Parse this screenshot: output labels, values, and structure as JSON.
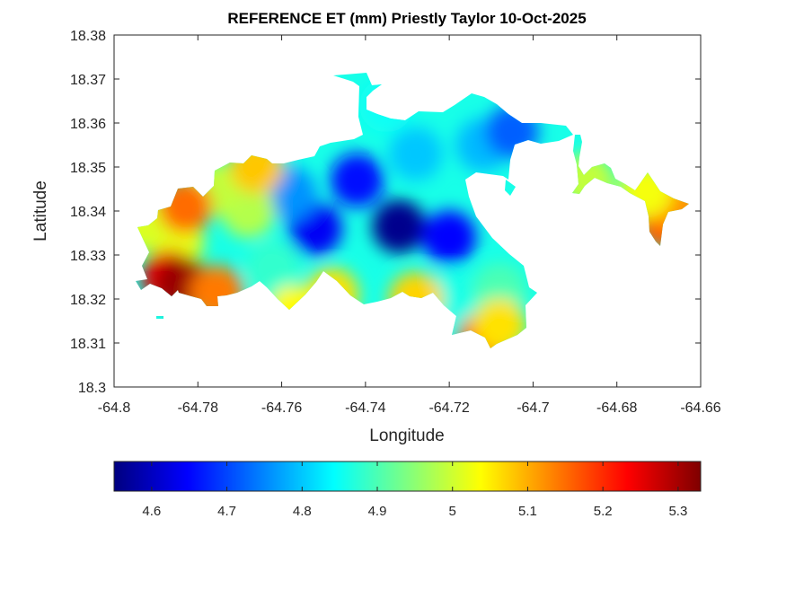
{
  "chart_data": {
    "type": "heatmap",
    "title": "REFERENCE ET (mm) Priestly Taylor 10-Oct-2025",
    "xlabel": "Longitude",
    "ylabel": "Latitude",
    "xlim": [
      -64.8,
      -64.66
    ],
    "ylim": [
      18.3,
      18.38
    ],
    "xticks": [
      -64.8,
      -64.78,
      -64.76,
      -64.74,
      -64.72,
      -64.7,
      -64.68,
      -64.66
    ],
    "xtick_labels": [
      "-64.8",
      "-64.78",
      "-64.76",
      "-64.74",
      "-64.72",
      "-64.7",
      "-64.68",
      "-64.66"
    ],
    "yticks": [
      18.3,
      18.31,
      18.32,
      18.33,
      18.34,
      18.35,
      18.36,
      18.37,
      18.38
    ],
    "ytick_labels": [
      "18.3",
      "18.31",
      "18.32",
      "18.33",
      "18.34",
      "18.35",
      "18.36",
      "18.37",
      "18.38"
    ],
    "colormap": "jet",
    "clim": [
      4.55,
      5.33
    ],
    "colorbar_ticks": [
      4.6,
      4.7,
      4.8,
      4.9,
      5,
      5.1,
      5.2,
      5.3
    ],
    "colorbar_tick_labels": [
      "4.6",
      "4.7",
      "4.8",
      "4.9",
      "5",
      "5.1",
      "5.2",
      "5.3"
    ],
    "colorbar_location": "southoutside",
    "grid": false,
    "regions": [
      {
        "lon": -64.732,
        "lat": 18.3365,
        "value": 4.56
      },
      {
        "lon": -64.752,
        "lat": 18.336,
        "value": 4.64
      },
      {
        "lon": -64.742,
        "lat": 18.347,
        "value": 4.66
      },
      {
        "lon": -64.72,
        "lat": 18.334,
        "value": 4.65
      },
      {
        "lon": -64.758,
        "lat": 18.344,
        "value": 4.76
      },
      {
        "lon": -64.728,
        "lat": 18.353,
        "value": 4.8
      },
      {
        "lon": -64.712,
        "lat": 18.355,
        "value": 4.79
      },
      {
        "lon": -64.705,
        "lat": 18.358,
        "value": 4.72
      },
      {
        "lon": -64.735,
        "lat": 18.364,
        "value": 4.85
      },
      {
        "lon": -64.72,
        "lat": 18.32,
        "value": 4.86
      },
      {
        "lon": -64.708,
        "lat": 18.322,
        "value": 4.9
      },
      {
        "lon": -64.762,
        "lat": 18.327,
        "value": 4.88
      },
      {
        "lon": -64.768,
        "lat": 18.34,
        "value": 4.98
      },
      {
        "lon": -64.776,
        "lat": 18.345,
        "value": 4.99
      },
      {
        "lon": -64.785,
        "lat": 18.333,
        "value": 5.02
      },
      {
        "lon": -64.793,
        "lat": 18.337,
        "value": 5.01
      },
      {
        "lon": -64.748,
        "lat": 18.321,
        "value": 5.06
      },
      {
        "lon": -64.728,
        "lat": 18.32,
        "value": 5.07
      },
      {
        "lon": -64.757,
        "lat": 18.317,
        "value": 5.04
      },
      {
        "lon": -64.766,
        "lat": 18.35,
        "value": 5.08
      },
      {
        "lon": -64.783,
        "lat": 18.341,
        "value": 5.15
      },
      {
        "lon": -64.787,
        "lat": 18.325,
        "value": 5.24
      },
      {
        "lon": -64.784,
        "lat": 18.3236,
        "value": 5.31
      },
      {
        "lon": -64.7755,
        "lat": 18.3215,
        "value": 5.14
      },
      {
        "lon": -64.7115,
        "lat": 18.311,
        "value": 5.16
      },
      {
        "lon": -64.708,
        "lat": 18.314,
        "value": 5.06
      },
      {
        "lon": -64.6685,
        "lat": 18.3375,
        "value": 5.17
      },
      {
        "lon": -64.666,
        "lat": 18.341,
        "value": 5.12
      },
      {
        "lon": -64.687,
        "lat": 18.347,
        "value": 4.99
      },
      {
        "lon": -64.673,
        "lat": 18.3445,
        "value": 5.03
      }
    ]
  }
}
